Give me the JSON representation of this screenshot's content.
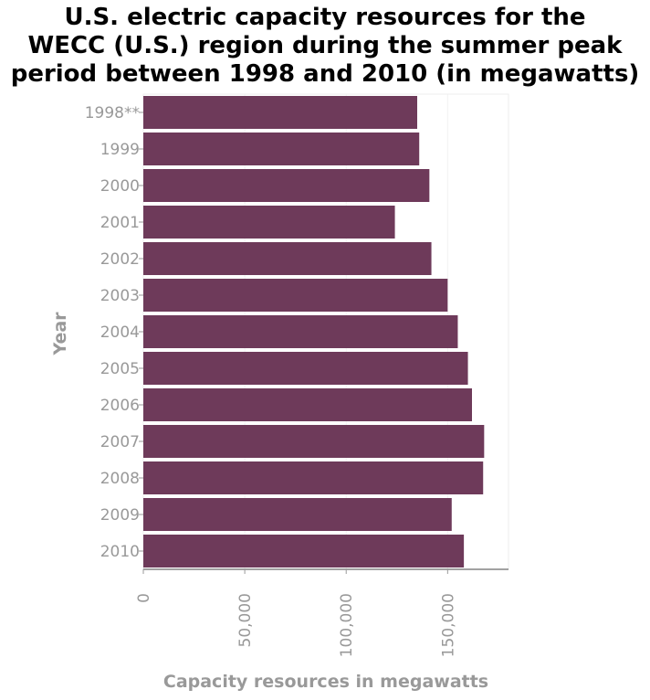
{
  "chart_data": {
    "type": "bar",
    "orientation": "horizontal",
    "title_lines": [
      "U.S. electric capacity resources for the",
      "WECC (U.S.) region during the summer peak",
      "period between 1998 and 2010 (in megawatts)"
    ],
    "xlabel": "Capacity resources in megawatts",
    "ylabel": "Year",
    "categories": [
      "1998**",
      "1999",
      "2000",
      "2001",
      "2002",
      "2003",
      "2004",
      "2005",
      "2006",
      "2007",
      "2008",
      "2009",
      "2010"
    ],
    "values": [
      135000,
      136000,
      141000,
      124000,
      142000,
      150000,
      155000,
      160000,
      162000,
      168000,
      167500,
      152000,
      158000
    ],
    "xlim": [
      0,
      180000
    ],
    "xticks": [
      0,
      50000,
      100000,
      150000
    ],
    "xtick_labels": [
      "0",
      "50,000",
      "100,000",
      "150,000"
    ],
    "bar_color": "#6e3a5a",
    "grid": "vertical-light"
  }
}
